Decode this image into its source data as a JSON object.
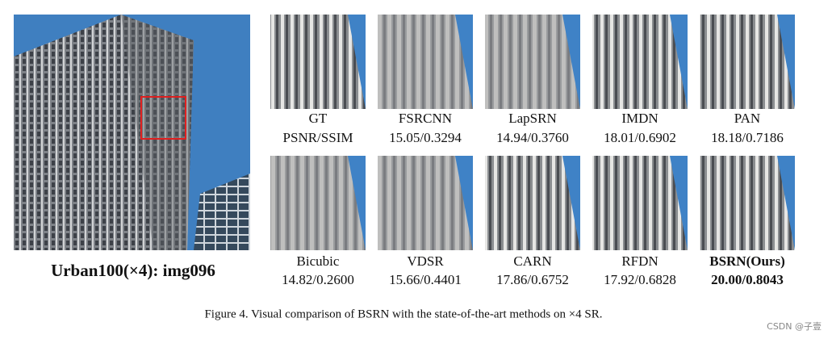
{
  "figure": {
    "main_image": {
      "label": "Urban100(×4): img096"
    },
    "patches": [
      {
        "method": "GT",
        "score": "PSNR/SSIM"
      },
      {
        "method": "FSRCNN",
        "score": "15.05/0.3294"
      },
      {
        "method": "LapSRN",
        "score": "14.94/0.3760"
      },
      {
        "method": "IMDN",
        "score": "18.01/0.6902"
      },
      {
        "method": "PAN",
        "score": "18.18/0.7186"
      },
      {
        "method": "Bicubic",
        "score": "14.82/0.2600"
      },
      {
        "method": "VDSR",
        "score": "15.66/0.4401"
      },
      {
        "method": "CARN",
        "score": "17.86/0.6752"
      },
      {
        "method": "RFDN",
        "score": "17.92/0.6828"
      },
      {
        "method": "BSRN(Ours)",
        "score": "20.00/0.8043",
        "bold": true
      }
    ],
    "caption": "Figure 4. Visual comparison of BSRN with the state-of-the-art methods on ×4 SR.",
    "watermark": "CSDN @子壹"
  }
}
